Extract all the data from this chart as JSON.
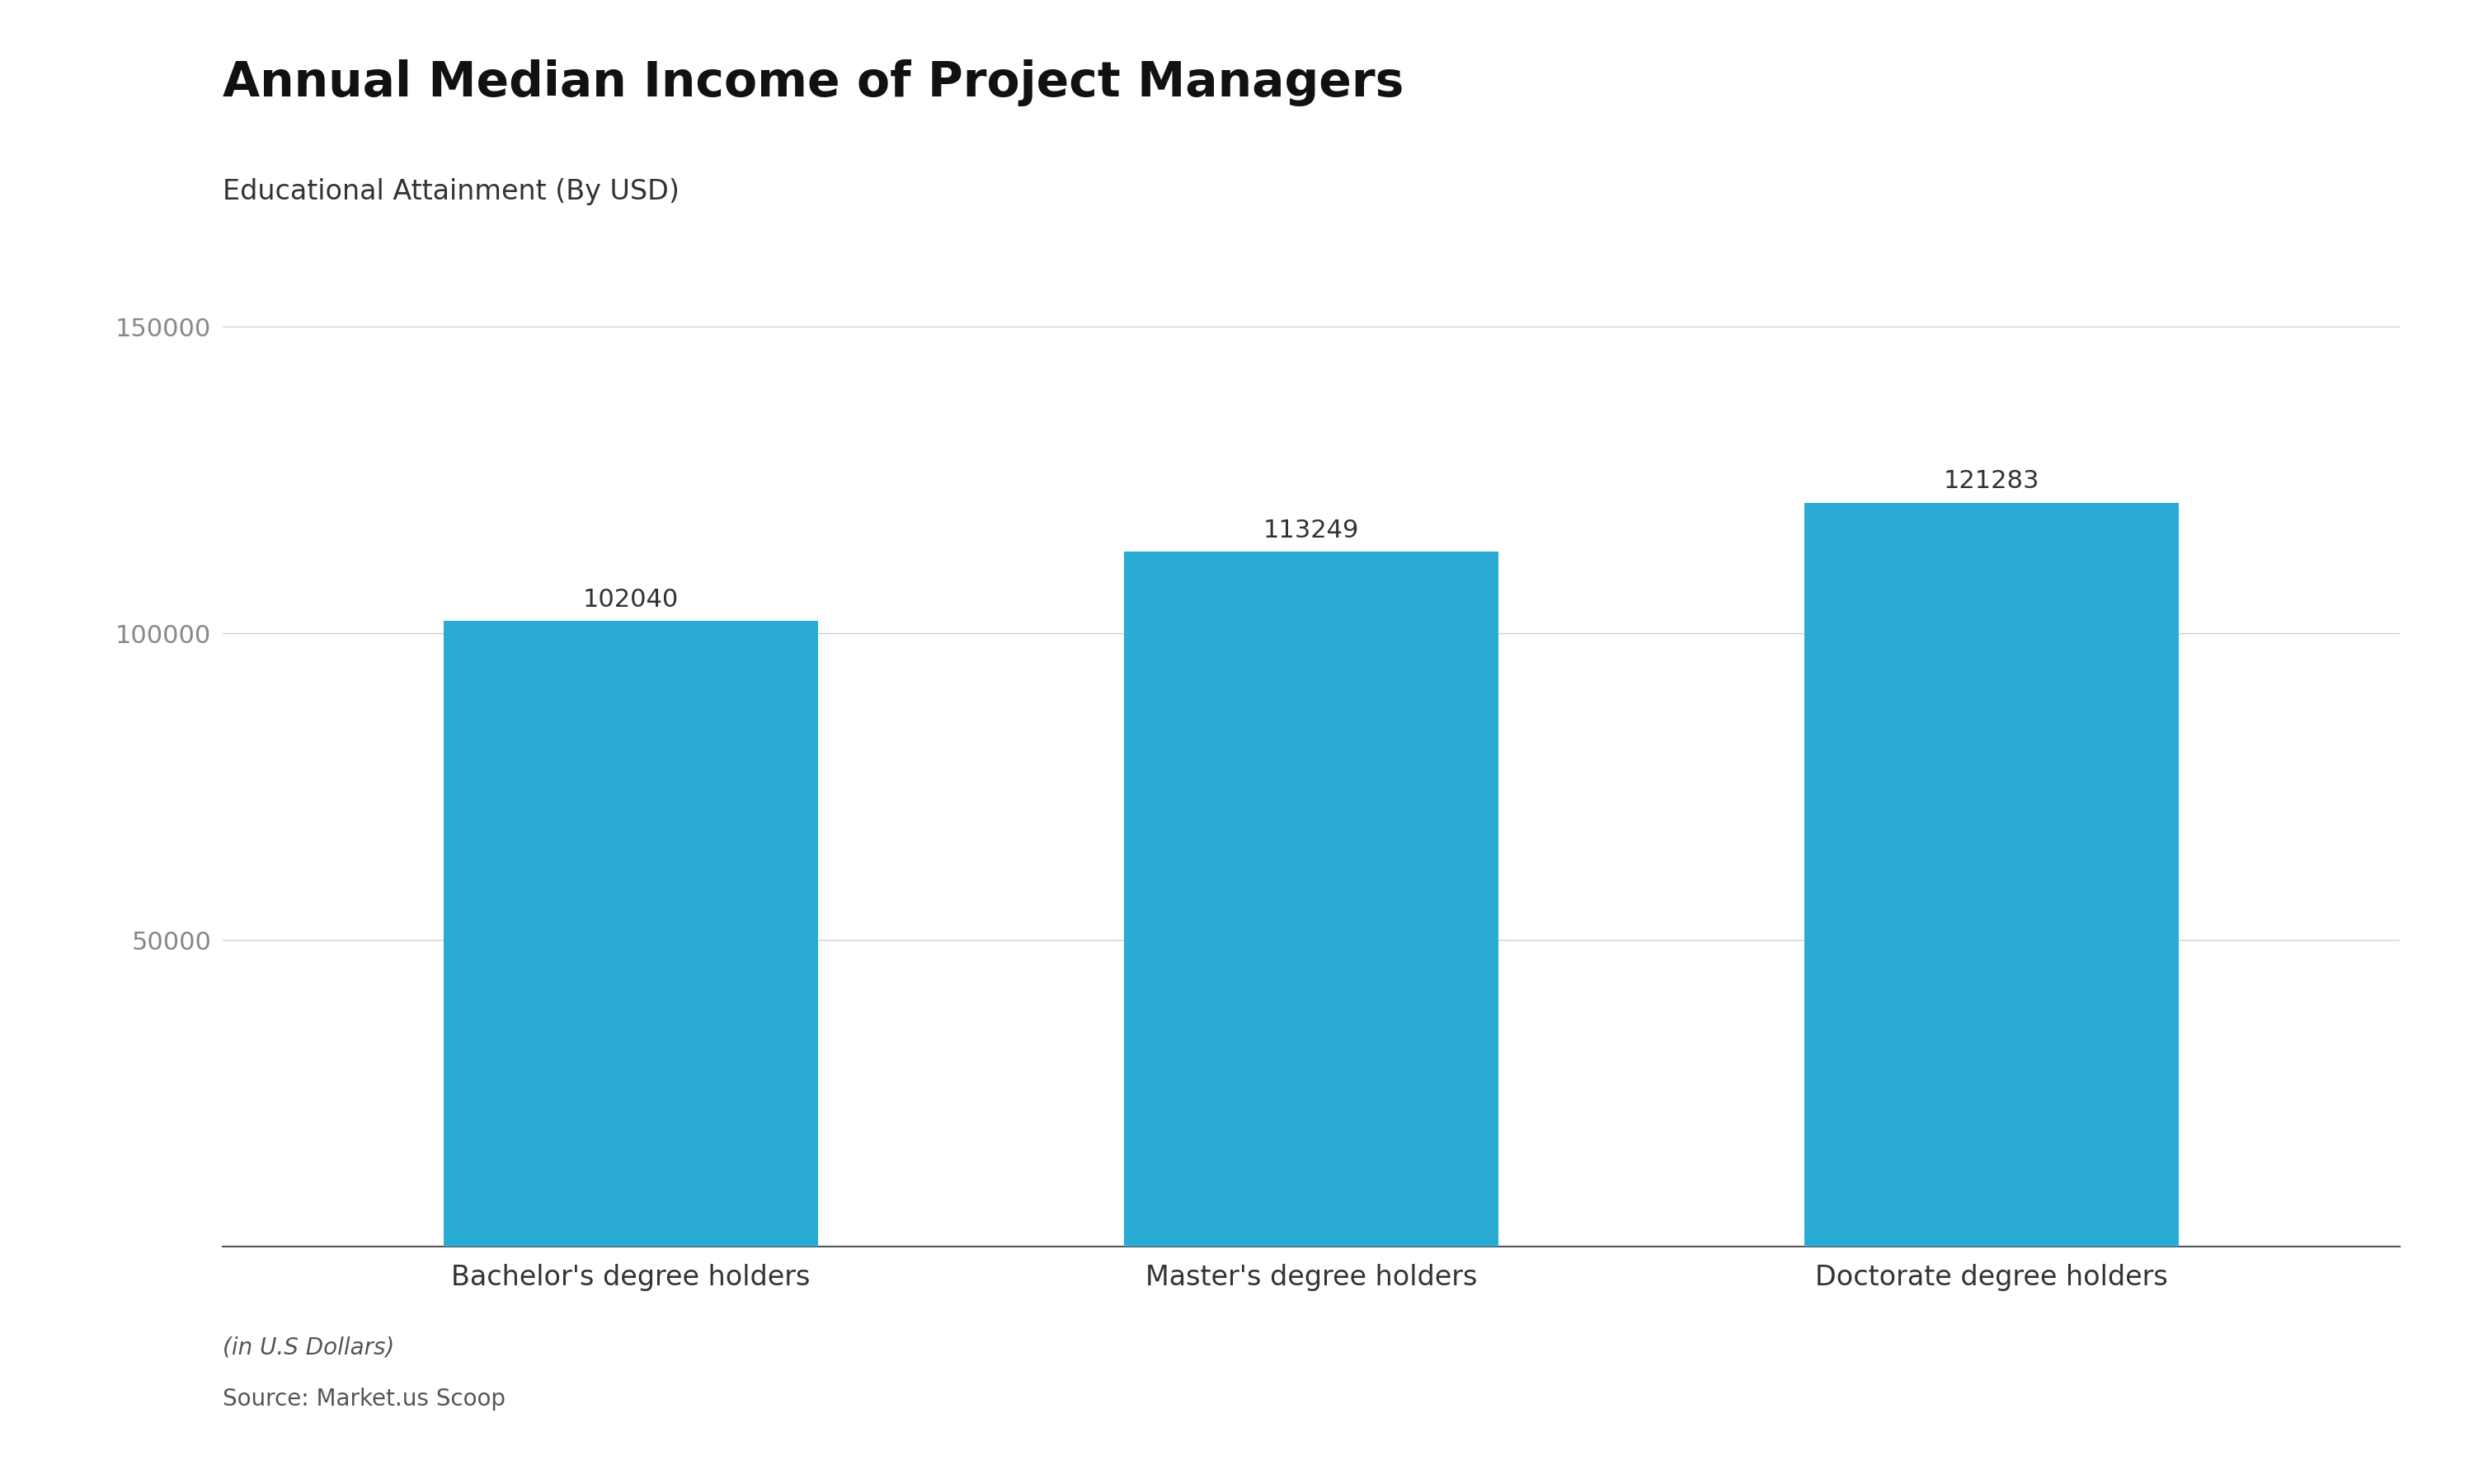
{
  "title": "Annual Median Income of Project Managers",
  "subtitle": "Educational Attainment (By USD)",
  "categories": [
    "Bachelor's degree holders",
    "Master's degree holders",
    "Doctorate degree holders"
  ],
  "values": [
    102040,
    113249,
    121283
  ],
  "bar_color": "#29ABD4",
  "ylim": [
    0,
    150000
  ],
  "yticks": [
    50000,
    100000,
    150000
  ],
  "ytick_labels": [
    "50000",
    "100000",
    "150000"
  ],
  "footnote_italic": "(in U.S Dollars)",
  "footnote_source": "Source: Market.us Scoop",
  "background_color": "#ffffff",
  "title_fontsize": 42,
  "subtitle_fontsize": 24,
  "tick_fontsize": 22,
  "label_fontsize": 24,
  "value_fontsize": 22,
  "footnote_fontsize": 20
}
